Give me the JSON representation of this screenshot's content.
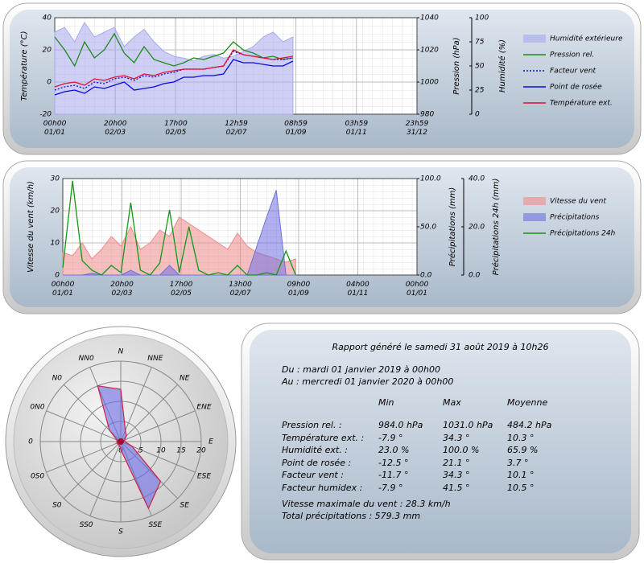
{
  "chart_data": [
    {
      "type": "line",
      "x": [
        0,
        10,
        20,
        30,
        40,
        50,
        60,
        70,
        80,
        90,
        100,
        110,
        120,
        130,
        140,
        150,
        160,
        170,
        180,
        190,
        200,
        210,
        220,
        230,
        240
      ],
      "xlim": [
        0,
        365
      ],
      "xticks": [
        {
          "value": 0,
          "label": "00h00\n01/01"
        },
        {
          "value": 61,
          "label": "20h00\n02/03"
        },
        {
          "value": 122,
          "label": "17h00\n02/05"
        },
        {
          "value": 183,
          "label": "12h59\n02/07"
        },
        {
          "value": 243,
          "label": "08h59\n01/09"
        },
        {
          "value": 304,
          "label": "03h59\n01/11"
        },
        {
          "value": 365,
          "label": "23h59\n31/12"
        }
      ],
      "ylabel": "Température (°C)",
      "ylim": [
        -20,
        40
      ],
      "yticks": [
        -20,
        0,
        20,
        40
      ],
      "y2label": "Pression (hPa)",
      "y2lim": [
        980,
        1040
      ],
      "y2ticks": [
        980,
        1000,
        1020,
        1040
      ],
      "y3label": "Humidité (%)",
      "y3lim": [
        0,
        100
      ],
      "y3ticks": [
        0,
        25,
        50,
        75,
        100
      ],
      "grid": true,
      "series": [
        {
          "name": "Humidité extérieure",
          "color": "#a8a8ee",
          "style": "area",
          "axis": "y3",
          "values": [
            85,
            90,
            75,
            95,
            80,
            85,
            90,
            70,
            80,
            88,
            75,
            65,
            60,
            58,
            55,
            60,
            62,
            58,
            60,
            65,
            70,
            80,
            85,
            75,
            80
          ]
        },
        {
          "name": "Pression rel.",
          "color": "#1a8a1a",
          "style": "line",
          "axis": "y2",
          "values": [
            1028,
            1020,
            1010,
            1025,
            1015,
            1020,
            1030,
            1018,
            1012,
            1022,
            1014,
            1012,
            1010,
            1012,
            1015,
            1014,
            1016,
            1018,
            1025,
            1020,
            1018,
            1015,
            1016,
            1014,
            1015
          ]
        },
        {
          "name": "Facteur vent",
          "color": "#1010cc",
          "style": "dotted",
          "axis": "y",
          "values": [
            -5,
            -3,
            -2,
            -4,
            0,
            -1,
            2,
            3,
            1,
            4,
            3,
            5,
            6,
            8,
            8,
            8,
            9,
            10,
            19,
            17,
            16,
            15,
            14,
            14,
            15
          ]
        },
        {
          "name": "Point de rosée",
          "color": "#0a0ad8",
          "style": "line",
          "axis": "y",
          "values": [
            -8,
            -6,
            -5,
            -7,
            -3,
            -4,
            -2,
            0,
            -5,
            -4,
            -3,
            -1,
            0,
            3,
            3,
            4,
            4,
            5,
            14,
            12,
            12,
            11,
            10,
            10,
            13
          ]
        },
        {
          "name": "Température ext.",
          "color": "#dd1030",
          "style": "line",
          "axis": "y",
          "values": [
            -3,
            -1,
            0,
            -2,
            2,
            1,
            3,
            4,
            2,
            5,
            4,
            6,
            7,
            8,
            8,
            8,
            9,
            10,
            20,
            17,
            16,
            15,
            14,
            15,
            16
          ]
        }
      ]
    },
    {
      "type": "line",
      "x": [
        0,
        10,
        20,
        30,
        40,
        50,
        60,
        70,
        80,
        90,
        100,
        110,
        120,
        130,
        140,
        150,
        160,
        170,
        180,
        190,
        200,
        210,
        220,
        230,
        240
      ],
      "xlim": [
        0,
        365
      ],
      "xticks": [
        {
          "value": 0,
          "label": "00h00\n01/01"
        },
        {
          "value": 61,
          "label": "20h00\n02/03"
        },
        {
          "value": 122,
          "label": "17h00\n02/05"
        },
        {
          "value": 183,
          "label": "13h00\n02/07"
        },
        {
          "value": 243,
          "label": "09h00\n01/09"
        },
        {
          "value": 304,
          "label": "04h00\n01/11"
        },
        {
          "value": 365,
          "label": "00h00\n01/01"
        }
      ],
      "ylabel": "Vitesse du vent (km/h)",
      "ylim": [
        0,
        30
      ],
      "yticks": [
        0,
        10,
        20,
        30
      ],
      "y2label": "Précipitations (mm)",
      "y2lim": [
        0,
        100
      ],
      "y2ticks": [
        {
          "value": 0,
          "label": "0.0"
        },
        {
          "value": 50,
          "label": "50.0"
        },
        {
          "value": 100,
          "label": "100.0"
        }
      ],
      "y3label": "Précipitations 24h (mm)",
      "y3lim": [
        0,
        40
      ],
      "y3ticks": [
        {
          "value": 0,
          "label": "0.0"
        },
        {
          "value": 20,
          "label": "20.0"
        },
        {
          "value": 40,
          "label": "40.0"
        }
      ],
      "grid": true,
      "series": [
        {
          "name": "Vitesse du vent",
          "color": "#ee8a8a",
          "style": "area",
          "axis": "y",
          "values": [
            7,
            6,
            10,
            5,
            8,
            12,
            9,
            15,
            8,
            10,
            14,
            12,
            18,
            16,
            14,
            12,
            10,
            8,
            13,
            9,
            7,
            6,
            5,
            4,
            5
          ]
        },
        {
          "name": "Précipitations",
          "color": "#7070e0",
          "style": "area",
          "axis": "y2",
          "values": [
            0,
            0,
            0,
            2,
            0,
            0,
            0,
            5,
            0,
            0,
            0,
            10,
            0,
            0,
            0,
            0,
            0,
            0,
            0,
            0,
            30,
            60,
            88,
            0,
            0
          ]
        },
        {
          "name": "Précipitations 24h",
          "color": "#119911",
          "style": "line",
          "axis": "y3",
          "values": [
            3,
            39,
            6,
            2,
            0,
            4,
            1,
            30,
            2,
            0,
            5,
            27,
            1,
            20,
            2,
            0,
            1,
            0,
            4,
            0,
            0,
            1,
            0,
            10,
            0
          ]
        }
      ]
    },
    {
      "type": "radar",
      "categories": [
        "N",
        "NNE",
        "NE",
        "ENE",
        "E",
        "ESE",
        "SE",
        "SSE",
        "S",
        "SS0",
        "S0",
        "0S0",
        "0",
        "0N0",
        "N0",
        "NN0"
      ],
      "rlim": [
        0,
        20
      ],
      "rticks": [
        0,
        5,
        10,
        15,
        20
      ],
      "series": [
        {
          "color": "#6a6ae8",
          "edge": "#d02040",
          "values": [
            13,
            3,
            2,
            1,
            1,
            3,
            14,
            18,
            2,
            1,
            1,
            1,
            1,
            1,
            4,
            15
          ]
        }
      ]
    }
  ],
  "report": {
    "title": "Rapport généré le samedi 31 août 2019 à 10h26",
    "period": [
      "Du : mardi 01 janvier 2019 à 00h00",
      "Au : mercredi 01 janvier 2020 à 00h00"
    ],
    "columns": [
      "Min",
      "Max",
      "Moyenne"
    ],
    "rows": [
      [
        "Pression rel. :",
        "984.0 hPa",
        "1031.0 hPa",
        "484.2 hPa"
      ],
      [
        "Température ext. :",
        "-7.9 °",
        "34.3 °",
        "10.3 °"
      ],
      [
        "Humidité ext. :",
        "23.0 %",
        "100.0 %",
        "65.9 %"
      ],
      [
        "Point de rosée :",
        "-12.5 °",
        "21.1 °",
        "3.7 °"
      ],
      [
        "Facteur vent :",
        "-11.7 °",
        "34.3 °",
        "10.1 °"
      ],
      [
        "Facteur humidex :",
        "-7.9 °",
        "41.5 °",
        "10.5 °"
      ]
    ],
    "summary": [
      "Vitesse maximale du vent : 28.3 km/h",
      "Total précipitations : 579.3 mm"
    ]
  }
}
